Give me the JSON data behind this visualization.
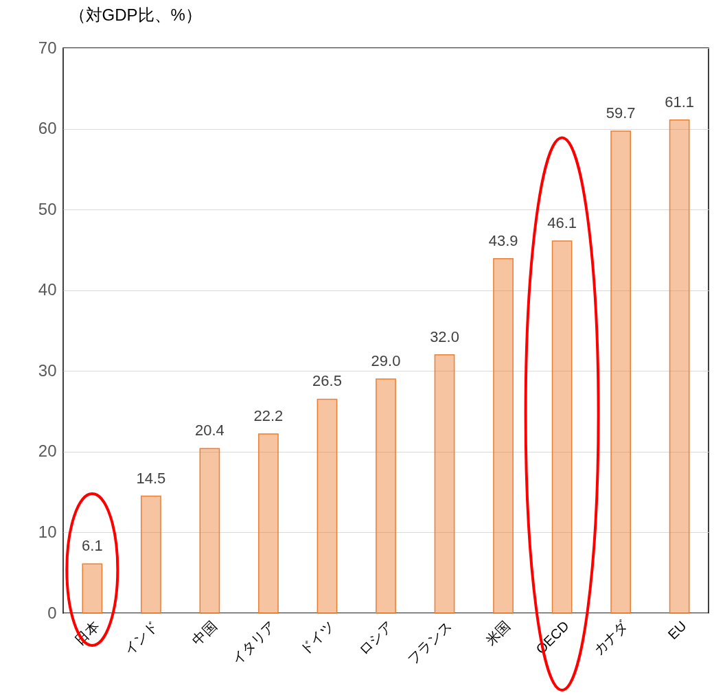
{
  "chart_data": {
    "type": "bar",
    "ylabel": "（対GDP比、%）",
    "categories": [
      "日本",
      "インド",
      "中国",
      "イタリア",
      "ドイツ",
      "ロシア",
      "フランス",
      "米国",
      "OECD",
      "カナダ",
      "EU"
    ],
    "values": [
      6.1,
      14.5,
      20.4,
      22.2,
      26.5,
      29.0,
      32.0,
      43.9,
      46.1,
      59.7,
      61.1
    ],
    "value_labels": [
      "6.1",
      "14.5",
      "20.4",
      "22.2",
      "26.5",
      "29.0",
      "32.0",
      "43.9",
      "46.1",
      "59.7",
      "61.1"
    ],
    "color": "#ed7d31",
    "ylim": [
      0,
      70
    ],
    "yticks": [
      0,
      10,
      20,
      30,
      40,
      50,
      60,
      70
    ],
    "grid": "y"
  }
}
